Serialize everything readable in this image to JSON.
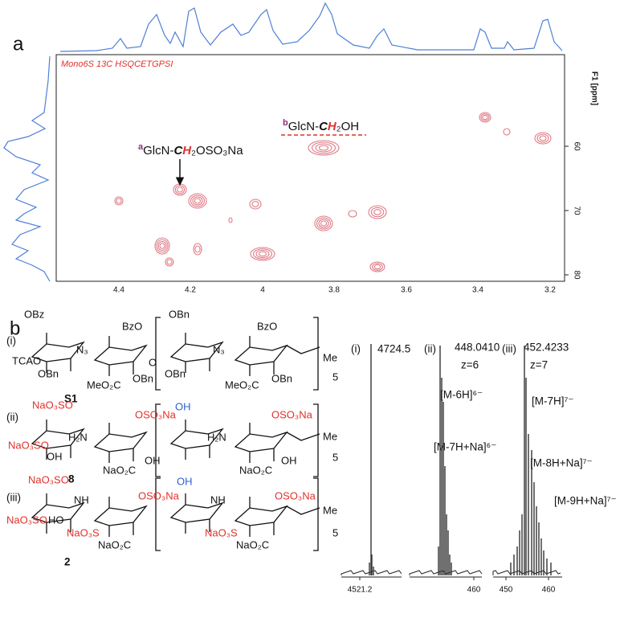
{
  "panel_a": {
    "label": "a",
    "experiment": "Mono6S 13C HSQCETGPSI",
    "y_axis_label": "F1 [ppm]",
    "y_ticks": [
      60,
      70,
      80
    ],
    "x_ticks": [
      4.4,
      4.2,
      4.0,
      3.8,
      3.6,
      3.4,
      3.2
    ],
    "annotations": [
      {
        "marker": "a",
        "prefix": "GlcN-",
        "c": "C",
        "h": "H",
        "suffix": "₂OSO₃Na"
      },
      {
        "marker": "b",
        "prefix": "GlcN-",
        "c": "C",
        "h": "H",
        "suffix": "₂OH"
      }
    ]
  },
  "panel_b": {
    "label": "b",
    "structures": [
      {
        "label": "(i)",
        "compound": "S1",
        "groups": [
          "OBz",
          "TCAO",
          "OBn",
          "N₃",
          "BzO",
          "MeO₂C",
          "OBn",
          "O",
          "OBn",
          "OBn",
          "N₃",
          "BzO",
          "MeO₂C",
          "OBn",
          "Me",
          "5"
        ]
      },
      {
        "label": "(ii)",
        "compound": "8",
        "groups": [
          "NaO₃SO",
          "NaO₃SO",
          "OH",
          "H₂N",
          "OSO₃Na",
          "NaO₂C",
          "OH",
          "OH",
          "H₂N",
          "OSO₃Na",
          "NaO₂C",
          "OH",
          "Me",
          "5"
        ]
      },
      {
        "label": "(iii)",
        "compound": "2",
        "groups": [
          "NaO₃SO",
          "NaO₃SO",
          "HO",
          "NH",
          "NaO₃S",
          "NaO₂C",
          "OSO₃Na",
          "OH",
          "NH",
          "NaO₃S",
          "OSO₃Na",
          "NaO₂C",
          "Me",
          "5"
        ]
      }
    ],
    "spectra": [
      {
        "label": "(i)",
        "peaks": [
          "4724.5"
        ],
        "axis": [
          "4521.2"
        ]
      },
      {
        "label": "(ii)",
        "peaks": [
          "448.0410",
          "z=6",
          "[M-6H]⁶⁻",
          "[M-7H+Na]⁶⁻"
        ],
        "axis": [
          "460"
        ]
      },
      {
        "label": "(iii)",
        "peaks": [
          "452.4233",
          "z=7",
          "[M-7H]⁷⁻",
          "[M-8H+Na]⁷⁻",
          "[M-9H+Na]⁷⁻"
        ],
        "axis": [
          "450",
          "460"
        ]
      }
    ]
  }
}
